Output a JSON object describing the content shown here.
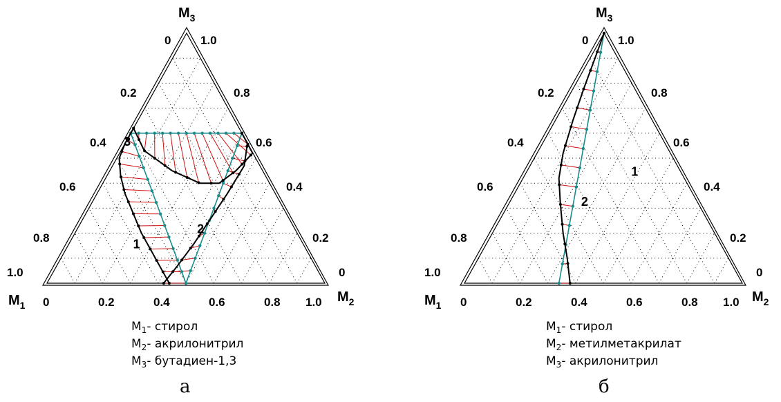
{
  "chart_data": [
    {
      "type": "ternary",
      "panel_label": "а",
      "vertices": {
        "top": "M3",
        "left": "M1",
        "right": "M2"
      },
      "ticks_bottom": [
        "0",
        "0.2",
        "0.4",
        "0.6",
        "0.8",
        "1.0"
      ],
      "ticks_left": [
        "0",
        "0.2",
        "0.4",
        "0.6",
        "0.8",
        "1.0"
      ],
      "ticks_right": [
        "1.0",
        "0.8",
        "0.6",
        "0.4",
        "0.2",
        "0"
      ],
      "legend": [
        {
          "sym": "M",
          "sub": "1",
          "text": "- стирол"
        },
        {
          "sym": "M",
          "sub": "2",
          "text": "- акрилонитрил"
        },
        {
          "sym": "M",
          "sub": "3",
          "text": "- бутадиен-1,3"
        }
      ],
      "curve_labels": [
        {
          "text": "1",
          "a": 0.31,
          "b": 0.14
        },
        {
          "text": "2",
          "a": 0.54,
          "b": 0.2
        },
        {
          "text": "3",
          "a": 0.27,
          "b": 0.55
        }
      ],
      "edges": [
        {
          "name": "1",
          "teal": [
            [
              0.5,
              0.0
            ],
            [
              0.2,
              0.6
            ]
          ],
          "black": [
            [
              0.44,
              0.0
            ],
            [
              0.41,
              0.06
            ],
            [
              0.375,
              0.13
            ],
            [
              0.34,
              0.2
            ],
            [
              0.31,
              0.28
            ],
            [
              0.28,
              0.36
            ],
            [
              0.265,
              0.43
            ],
            [
              0.26,
              0.5
            ],
            [
              0.265,
              0.56
            ],
            [
              0.27,
              0.62
            ]
          ],
          "tielines": 14
        },
        {
          "name": "2",
          "teal": [
            [
              0.5,
              0.0
            ],
            [
              0.8,
              0.6
            ]
          ],
          "black": [
            [
              0.42,
              0.0
            ],
            [
              0.47,
              0.07
            ],
            [
              0.53,
              0.16
            ],
            [
              0.59,
              0.26
            ],
            [
              0.65,
              0.36
            ],
            [
              0.71,
              0.47
            ],
            [
              0.76,
              0.56
            ],
            [
              0.8,
              0.6
            ]
          ],
          "tielines": 13
        },
        {
          "name": "3",
          "teal": [
            [
              0.2,
              0.6
            ],
            [
              0.8,
              0.6
            ]
          ],
          "black": [
            [
              0.27,
              0.62
            ],
            [
              0.35,
              0.53
            ],
            [
              0.45,
              0.45
            ],
            [
              0.55,
              0.4
            ],
            [
              0.62,
              0.4
            ],
            [
              0.68,
              0.45
            ],
            [
              0.74,
              0.52
            ],
            [
              0.8,
              0.6
            ]
          ],
          "tielines": 15
        }
      ]
    },
    {
      "type": "ternary",
      "panel_label": "б",
      "vertices": {
        "top": "M3",
        "left": "M1",
        "right": "M2"
      },
      "ticks_bottom": [
        "0",
        "0.2",
        "0.4",
        "0.6",
        "0.8",
        "1.0"
      ],
      "ticks_left": [
        "0",
        "0.2",
        "0.4",
        "0.6",
        "0.8",
        "1.0"
      ],
      "ticks_right": [
        "1.0",
        "0.8",
        "0.6",
        "0.4",
        "0.2",
        "0"
      ],
      "legend": [
        {
          "sym": "M",
          "sub": "1",
          "text": "- стирол"
        },
        {
          "sym": "M",
          "sub": "2",
          "text": "- метилметакрилат"
        },
        {
          "sym": "M",
          "sub": "3",
          "text": "- акрилонитрил"
        }
      ],
      "curve_labels": [
        {
          "text": "1",
          "a": 0.6,
          "b": 0.43
        },
        {
          "text": "2",
          "a": 0.42,
          "b": 0.31
        }
      ],
      "edges": [
        {
          "name": "1",
          "teal": [
            [
              0.34,
              0.0
            ],
            [
              0.5,
              1.0
            ]
          ],
          "black": [
            [
              0.38,
              0.0
            ],
            [
              0.37,
              0.1
            ],
            [
              0.355,
              0.2
            ],
            [
              0.345,
              0.32
            ],
            [
              0.34,
              0.42
            ],
            [
              0.355,
              0.52
            ],
            [
              0.39,
              0.65
            ],
            [
              0.43,
              0.78
            ],
            [
              0.47,
              0.9
            ],
            [
              0.5,
              1.0
            ]
          ],
          "tielines": 14
        }
      ]
    }
  ]
}
